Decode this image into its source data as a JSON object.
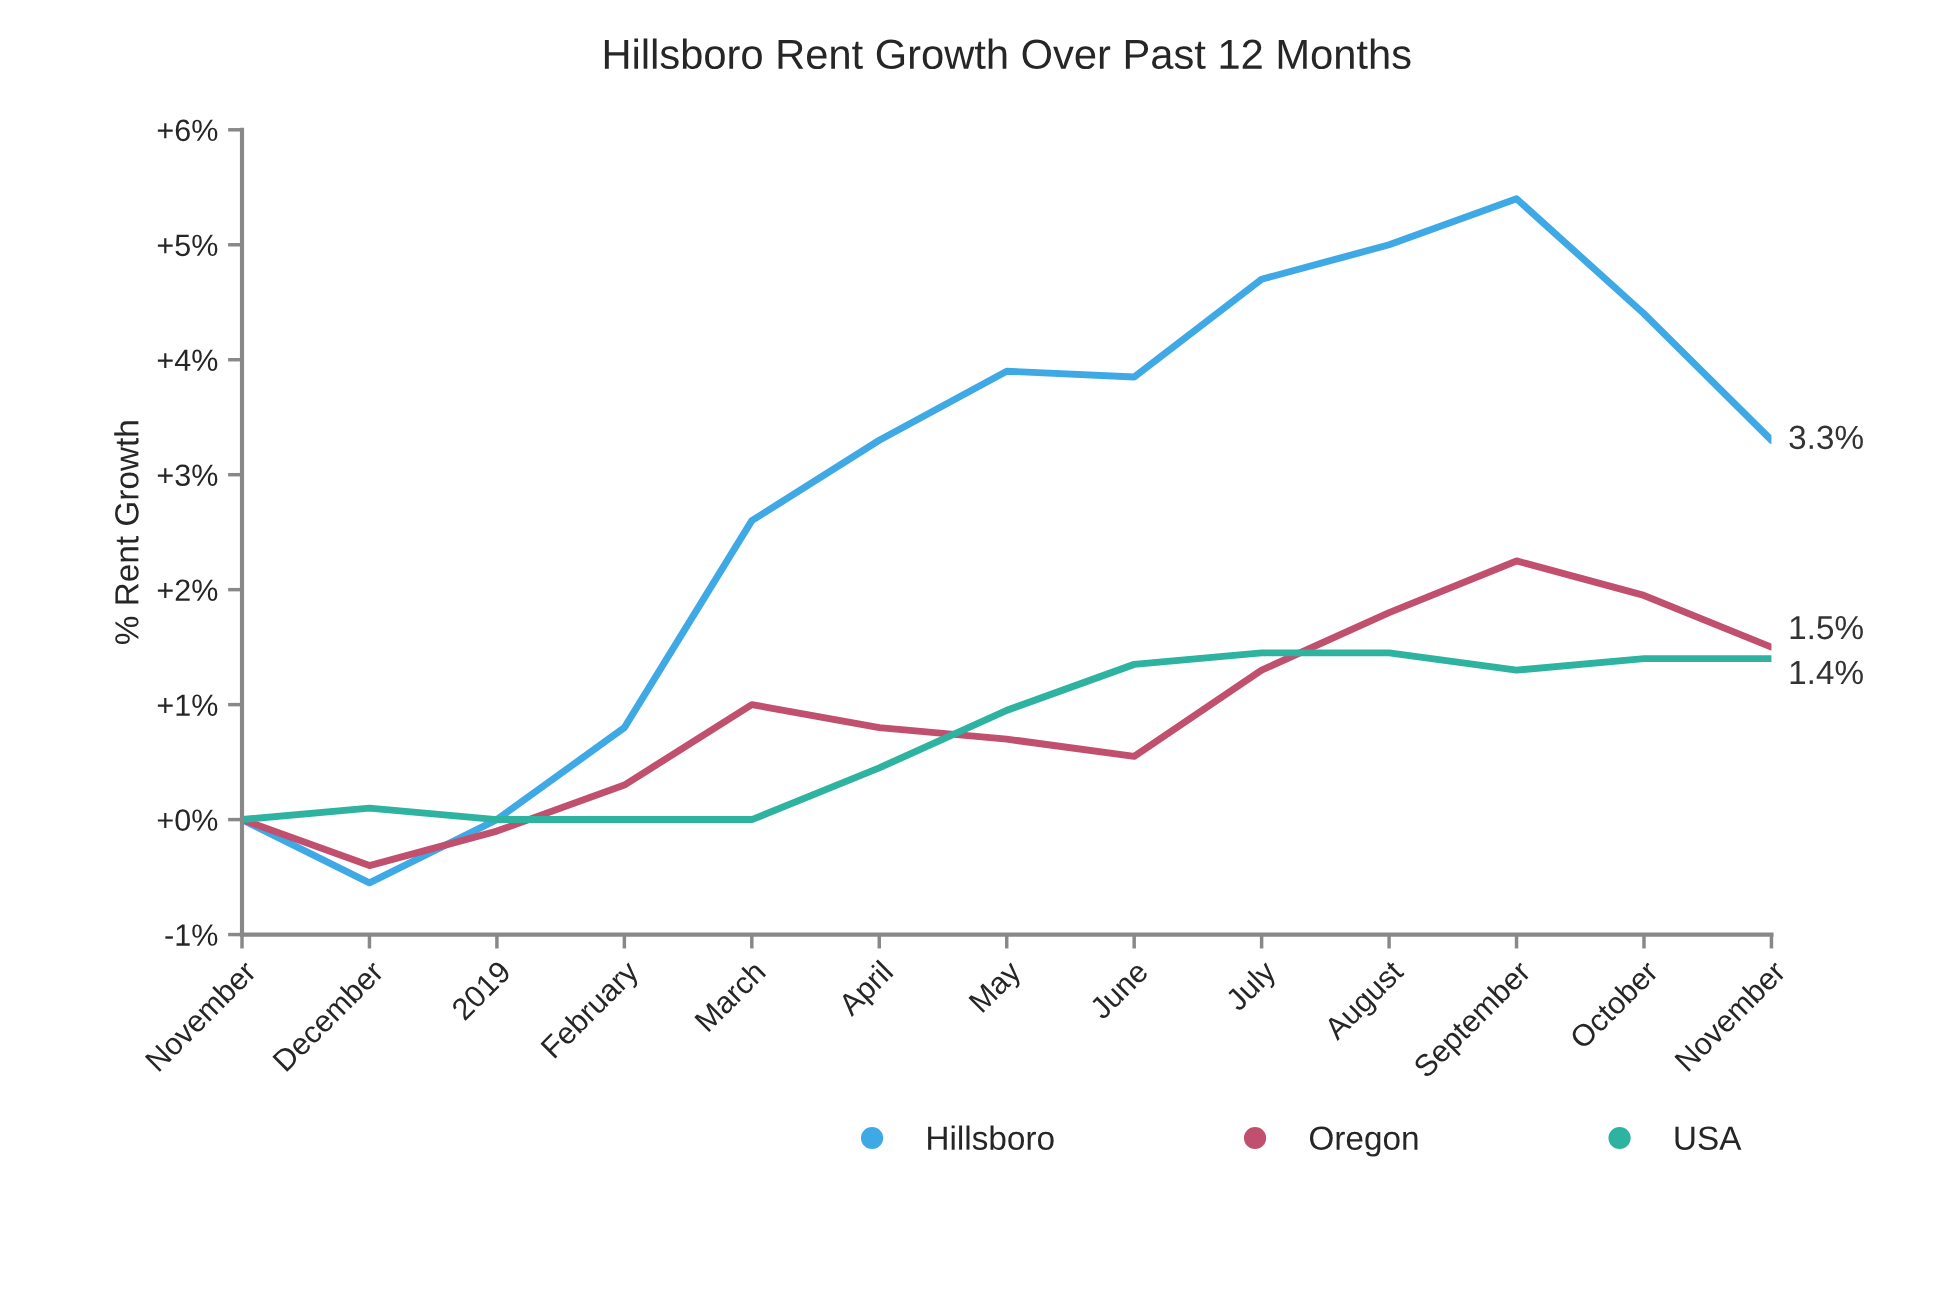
{
  "chart_data": {
    "type": "line",
    "title": "Hillsboro Rent Growth Over Past 12 Months",
    "ylabel": "% Rent Growth",
    "categories": [
      "November",
      "December",
      "2019",
      "February",
      "March",
      "April",
      "May",
      "June",
      "July",
      "August",
      "September",
      "October",
      "November"
    ],
    "series": [
      {
        "name": "Hillsboro",
        "color": "#3fa9e6",
        "values": [
          0,
          -0.55,
          0,
          0.8,
          2.6,
          3.3,
          3.9,
          3.85,
          4.7,
          5.0,
          5.4,
          4.4,
          3.3
        ],
        "value_labels": [
          null,
          null,
          null,
          null,
          null,
          null,
          null,
          null,
          null,
          null,
          null,
          null,
          "3.3%"
        ]
      },
      {
        "name": "Oregon",
        "color": "#c0506e",
        "values": [
          0,
          -0.4,
          -0.1,
          0.3,
          1.0,
          0.8,
          0.7,
          0.55,
          1.3,
          1.8,
          2.25,
          1.95,
          1.5
        ],
        "value_labels": [
          null,
          null,
          null,
          null,
          null,
          null,
          null,
          null,
          null,
          null,
          null,
          null,
          "1.5%"
        ]
      },
      {
        "name": "USA",
        "color": "#2db3a0",
        "values": [
          0,
          0.1,
          0.0,
          0.0,
          0.0,
          0.45,
          0.95,
          1.35,
          1.45,
          1.45,
          1.3,
          1.4,
          1.4
        ],
        "value_labels": [
          null,
          null,
          null,
          null,
          null,
          null,
          null,
          null,
          null,
          null,
          null,
          null,
          "1.4%"
        ]
      }
    ],
    "ylim": [
      -1,
      6
    ],
    "yticks": [
      {
        "value": -1,
        "label": "-1%"
      },
      {
        "value": 0,
        "label": "+0%"
      },
      {
        "value": 1,
        "label": "+1%"
      },
      {
        "value": 2,
        "label": "+2%"
      },
      {
        "value": 3,
        "label": "+3%"
      },
      {
        "value": 4,
        "label": "+4%"
      },
      {
        "value": 5,
        "label": "+5%"
      },
      {
        "value": 6,
        "label": "+6%"
      }
    ],
    "grid": false,
    "legend": "bottom right",
    "marker": "none",
    "line_style": "solid"
  }
}
